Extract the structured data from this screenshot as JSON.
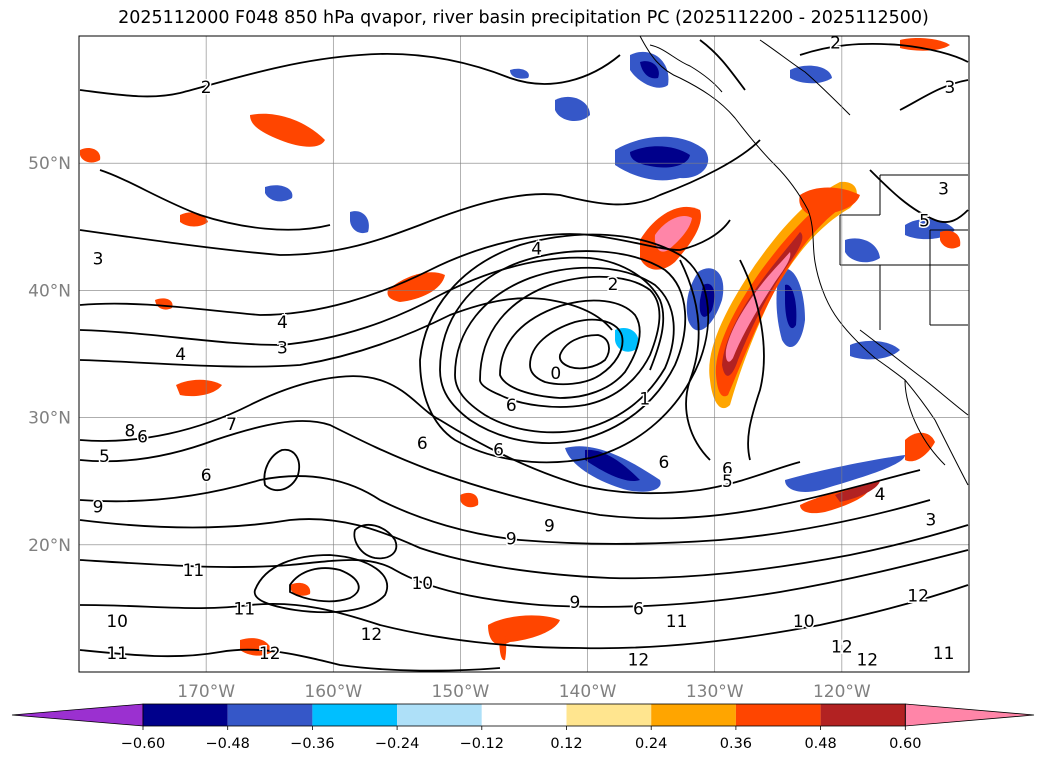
{
  "title": "2025112000 F048 850 hPa qvapor, river basin precipitation PC (2025112200 - 2025112500)",
  "map": {
    "lat_labels": [
      "50°N",
      "40°N",
      "30°N",
      "20°N"
    ],
    "lon_labels": [
      "170°W",
      "160°W",
      "150°W",
      "140°W",
      "130°W",
      "120°W"
    ],
    "lat_values": [
      50,
      40,
      30,
      20
    ],
    "lon_values": [
      -170,
      -160,
      -150,
      -140,
      -130,
      -120
    ],
    "extent": {
      "lon_min": -180,
      "lon_max": -110,
      "lat_min": 10,
      "lat_max": 60
    },
    "contour_labels": [
      {
        "text": "2",
        "lon": -170,
        "lat": 56
      },
      {
        "text": "2",
        "lon": -120.5,
        "lat": 59.5
      },
      {
        "text": "3",
        "lon": -178.5,
        "lat": 42.5
      },
      {
        "text": "4",
        "lon": -144,
        "lat": 43.3
      },
      {
        "text": "3",
        "lon": -164,
        "lat": 35.5
      },
      {
        "text": "2",
        "lon": -138,
        "lat": 40.5
      },
      {
        "text": "0",
        "lon": -142.5,
        "lat": 33.5
      },
      {
        "text": "1",
        "lon": -135.5,
        "lat": 31.5
      },
      {
        "text": "6",
        "lon": -146,
        "lat": 31
      },
      {
        "text": "6",
        "lon": -147,
        "lat": 27.5
      },
      {
        "text": "6",
        "lon": -153,
        "lat": 28
      },
      {
        "text": "7",
        "lon": -168,
        "lat": 29.5
      },
      {
        "text": "6",
        "lon": -170,
        "lat": 25.5
      },
      {
        "text": "6",
        "lon": -134,
        "lat": 26.5
      },
      {
        "text": "6",
        "lon": -129,
        "lat": 26
      },
      {
        "text": "5",
        "lon": -129,
        "lat": 25
      },
      {
        "text": "9",
        "lon": -178.5,
        "lat": 23
      },
      {
        "text": "9",
        "lon": -143,
        "lat": 21.5
      },
      {
        "text": "9",
        "lon": -146,
        "lat": 20.5
      },
      {
        "text": "10",
        "lon": -153,
        "lat": 17
      },
      {
        "text": "9",
        "lon": -141,
        "lat": 15.5
      },
      {
        "text": "6",
        "lon": -136,
        "lat": 15
      },
      {
        "text": "12",
        "lon": -157,
        "lat": 13
      },
      {
        "text": "11",
        "lon": -171,
        "lat": 18
      },
      {
        "text": "11",
        "lon": -167,
        "lat": 15
      },
      {
        "text": "10",
        "lon": -177,
        "lat": 14
      },
      {
        "text": "11",
        "lon": -177,
        "lat": 11.5
      },
      {
        "text": "12",
        "lon": -165,
        "lat": 11.5
      },
      {
        "text": "11",
        "lon": -133,
        "lat": 14
      },
      {
        "text": "12",
        "lon": -136,
        "lat": 11
      },
      {
        "text": "10",
        "lon": -123,
        "lat": 14
      },
      {
        "text": "12",
        "lon": -120,
        "lat": 12
      },
      {
        "text": "12",
        "lon": -118,
        "lat": 11
      },
      {
        "text": "11",
        "lon": -112,
        "lat": 11.5
      },
      {
        "text": "12",
        "lon": -114,
        "lat": 16
      },
      {
        "text": "4",
        "lon": -117,
        "lat": 24
      },
      {
        "text": "3",
        "lon": -113,
        "lat": 22
      },
      {
        "text": "8",
        "lon": -176,
        "lat": 29
      },
      {
        "text": "6",
        "lon": -175,
        "lat": 28.5
      },
      {
        "text": "5",
        "lon": -178,
        "lat": 27
      },
      {
        "text": "3",
        "lon": -112,
        "lat": 48
      },
      {
        "text": "3",
        "lon": -111.5,
        "lat": 56
      },
      {
        "text": "5",
        "lon": -113.5,
        "lat": 45.5
      },
      {
        "text": "4",
        "lon": -164,
        "lat": 37.5
      },
      {
        "text": "4",
        "lon": -172,
        "lat": 35
      }
    ]
  },
  "colorbar": {
    "tick_labels": [
      "−0.60",
      "−0.48",
      "−0.36",
      "−0.24",
      "−0.12",
      "0.12",
      "0.24",
      "0.36",
      "0.48",
      "0.60"
    ],
    "levels": [
      -0.6,
      -0.48,
      -0.36,
      -0.24,
      -0.12,
      0.12,
      0.24,
      0.36,
      0.48,
      0.6
    ],
    "colors": [
      "#9b30d0",
      "#00008b",
      "#3557c8",
      "#00bfff",
      "#aee0f8",
      "#ffffff",
      "#ffe58f",
      "#ffa500",
      "#ff4500",
      "#b22222",
      "#ff85a8"
    ]
  }
}
